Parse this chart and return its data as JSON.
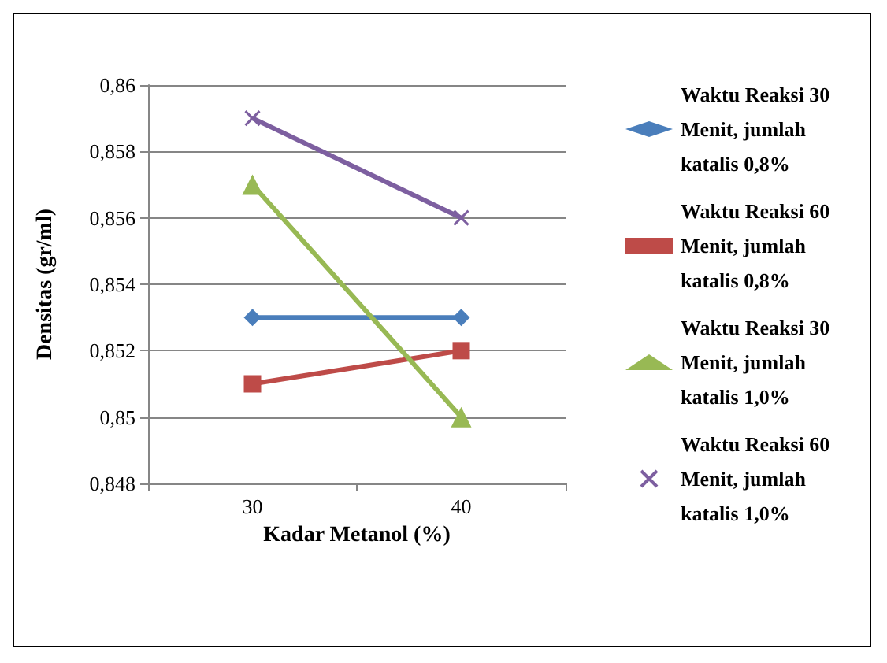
{
  "chart_data": {
    "type": "line",
    "xlabel": "Kadar Metanol (%)",
    "ylabel": "Densitas (gr/ml)",
    "categories": [
      "30",
      "40"
    ],
    "ylim": [
      0.848,
      0.86
    ],
    "yticks": [
      {
        "value": 0.848,
        "label": "0,848"
      },
      {
        "value": 0.85,
        "label": "0,85"
      },
      {
        "value": 0.852,
        "label": "0,852"
      },
      {
        "value": 0.854,
        "label": "0,854"
      },
      {
        "value": 0.856,
        "label": "0,856"
      },
      {
        "value": 0.858,
        "label": "0,858"
      },
      {
        "value": 0.86,
        "label": "0,86"
      }
    ],
    "series": [
      {
        "name": "Waktu Reaksi 30 Menit, jumlah katalis 0,8%",
        "color": "#4a7ebb",
        "values": [
          0.853,
          0.853
        ],
        "marker": "diamond"
      },
      {
        "name": "Waktu Reaksi 60 Menit, jumlah katalis 0,8%",
        "color": "#be4b48",
        "values": [
          0.851,
          0.852
        ],
        "marker": "square"
      },
      {
        "name": "Waktu Reaksi 30 Menit, jumlah katalis 1,0%",
        "color": "#98b954",
        "values": [
          0.857,
          0.85
        ],
        "marker": "triangle"
      },
      {
        "name": "Waktu Reaksi 60 Menit, jumlah katalis 1,0%",
        "color": "#7d5fa0",
        "values": [
          0.859,
          0.856
        ],
        "marker": "cross"
      }
    ],
    "grid": "y",
    "legend": "right",
    "line_style": "solid"
  }
}
